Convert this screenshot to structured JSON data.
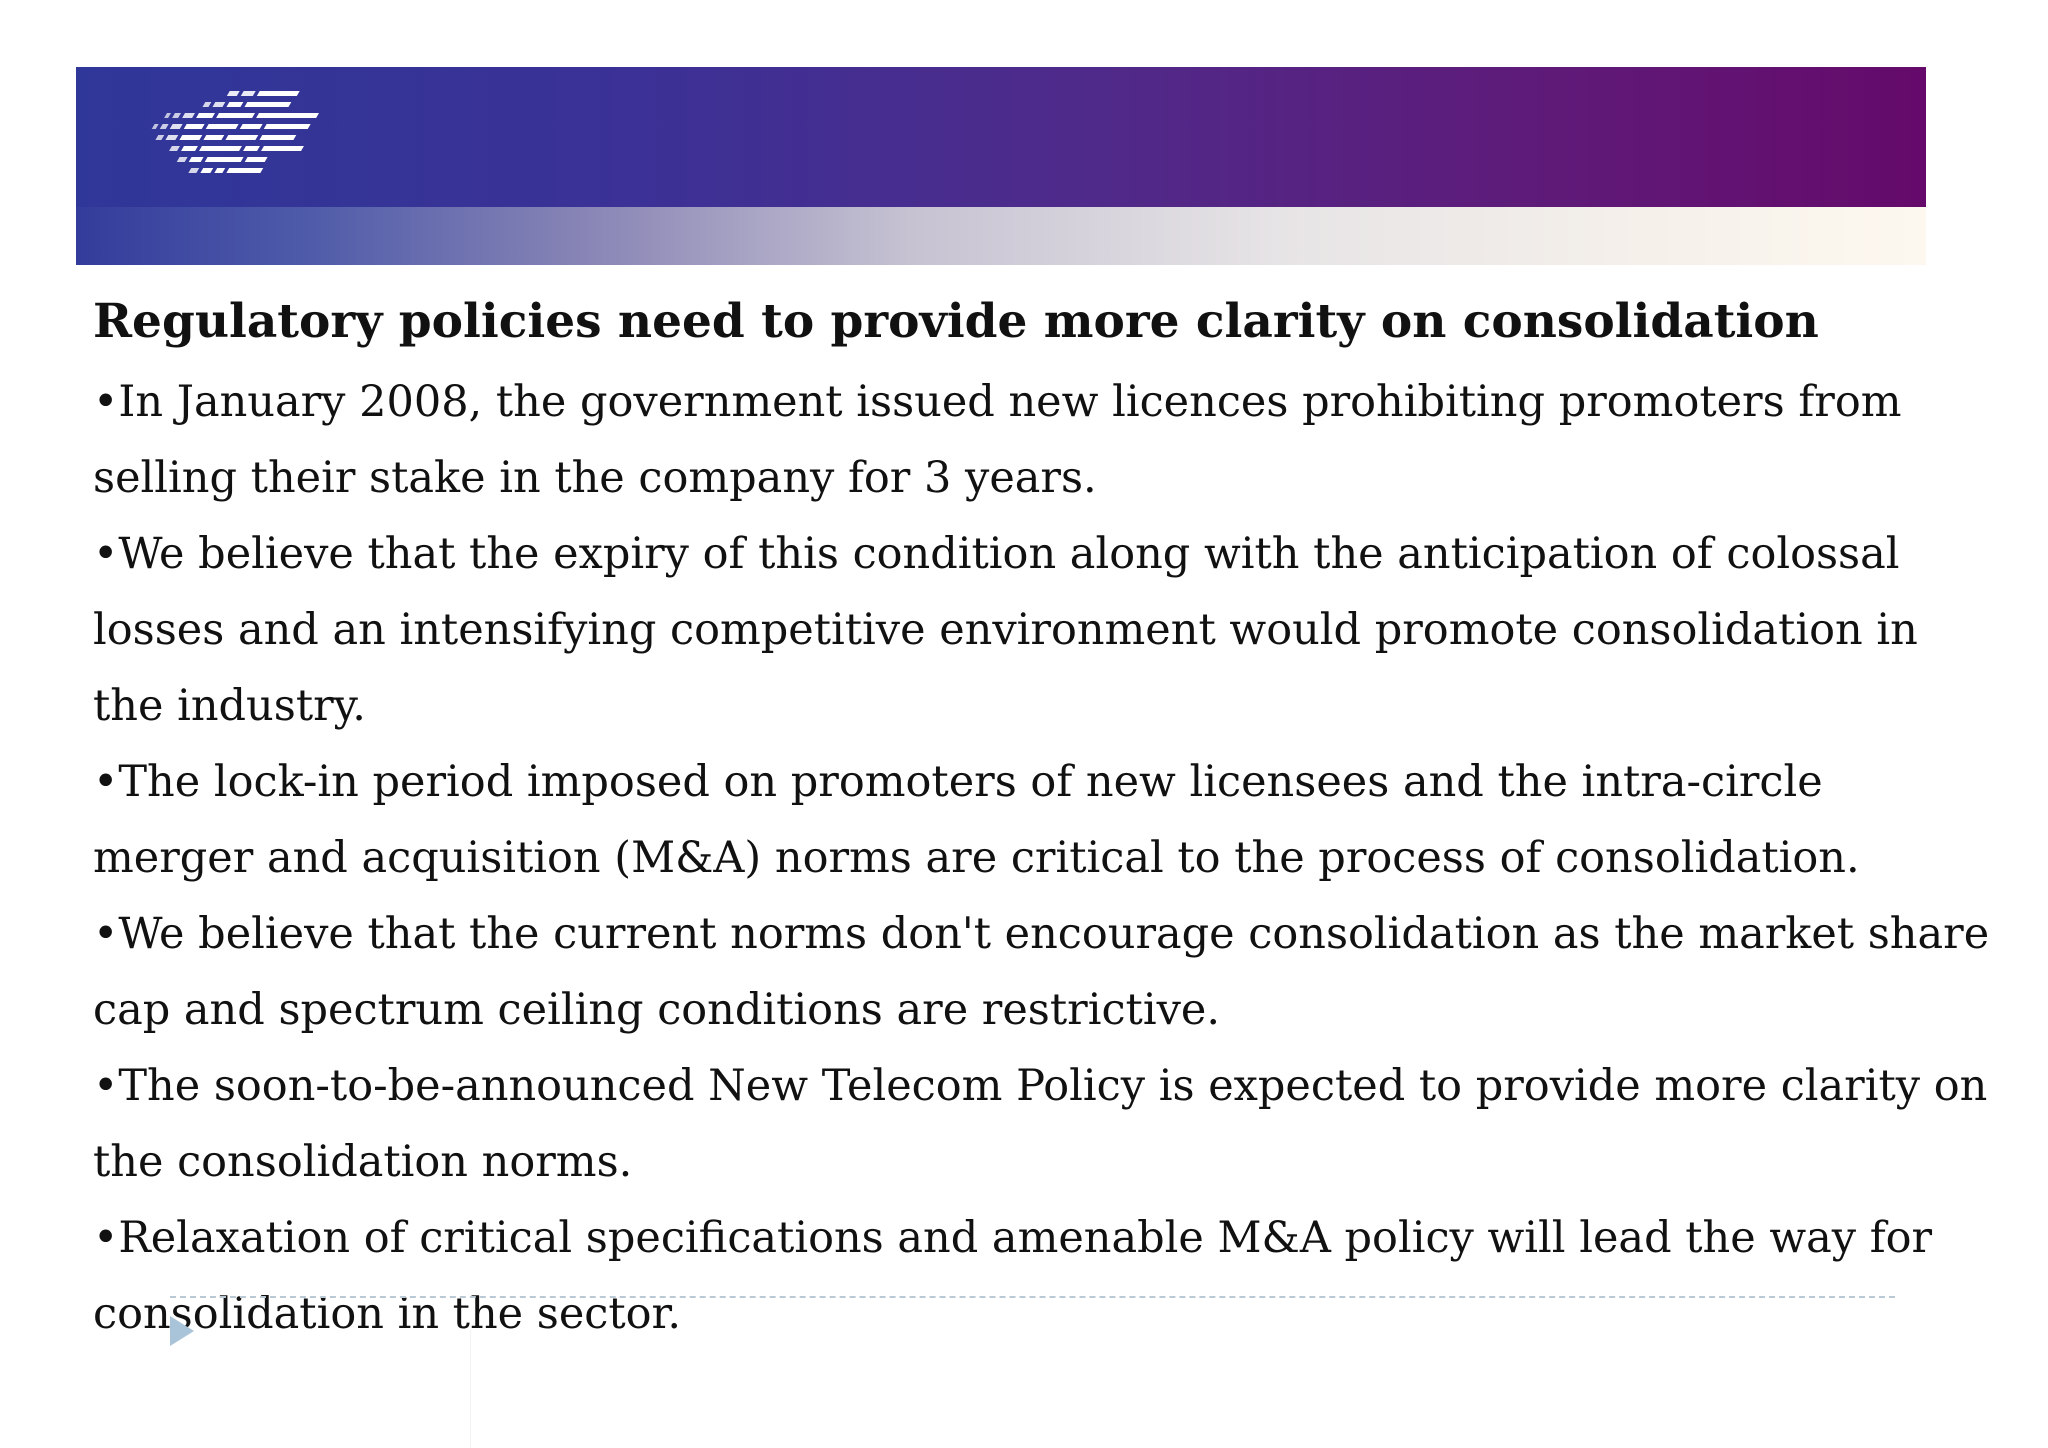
{
  "slide": {
    "title": "Regulatory policies need to provide more clarity on consolidation",
    "bullets": [
      "•In January 2008, the government issued new licences prohibiting promoters from selling their stake in the company for 3 years.",
      "•We believe that the expiry of this condition along with the anticipation of colossal losses and an intensifying competitive environment would promote consolidation in the industry.",
      "•The lock-in period imposed on promoters of new licensees and the intra-circle merger and acquisition (M&A) norms are critical to the process of consolidation.",
      "•We believe that the current norms don't encourage consolidation as the market share cap and spectrum ceiling conditions are restrictive.",
      "•The soon-to-be-announced New Telecom Policy is expected to provide more clarity on the consolidation norms.",
      "•Relaxation of critical specifications and amenable M&A policy will lead the way for consolidation in the sector."
    ]
  },
  "banner": {
    "logo_icon": "striped-logo-icon",
    "colors": {
      "banner_left": "#2f3798",
      "banner_right": "#650a6b",
      "banner_fade_end": "#fdf8ef"
    }
  },
  "footer": {
    "arrow_icon": "triangle-right-icon",
    "line_color": "#b9c9d6",
    "arrow_color": "#a9c3d8"
  }
}
